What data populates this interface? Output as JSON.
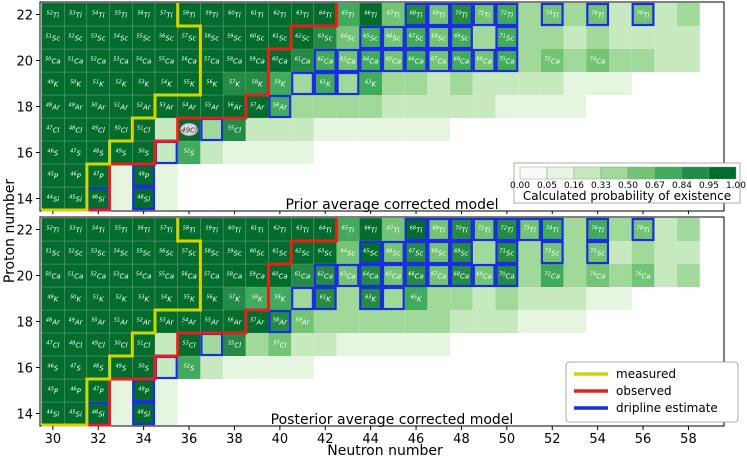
{
  "chart_data": {
    "type": "heatmap",
    "xlabel": "Neutron number",
    "ylabel": "Proton number",
    "xlim": [
      29.5,
      59.5
    ],
    "ylim": [
      13.5,
      22.5
    ],
    "xticks": [
      "30",
      "32",
      "34",
      "36",
      "38",
      "40",
      "42",
      "44",
      "46",
      "48",
      "50",
      "52",
      "54",
      "56",
      "58"
    ],
    "yticks": [
      "14",
      "16",
      "18",
      "20",
      "22"
    ],
    "elements": {
      "14": "Si",
      "15": "P",
      "16": "S",
      "17": "Cl",
      "18": "Ar",
      "19": "K",
      "20": "Ca",
      "21": "Sc",
      "22": "Ti"
    },
    "colorbar": {
      "label": "Calculated probability of existence",
      "ticks": [
        "0.00",
        "0.05",
        "0.16",
        "0.33",
        "0.50",
        "0.67",
        "0.84",
        "0.95",
        "1.00"
      ],
      "colors": [
        "#f7fcf5",
        "#e5f5e0",
        "#c7e9c0",
        "#a1d99b",
        "#74c476",
        "#41ab5d",
        "#238b45",
        "#006d2c"
      ]
    },
    "legend": [
      {
        "label": "measured",
        "color": "#d4d400"
      },
      {
        "label": "observed",
        "color": "#e8201c"
      },
      {
        "label": "dripline estimate",
        "color": "#1a2ee0"
      }
    ],
    "panels": [
      {
        "title": "Prior average corrected model",
        "circled": "49Cl",
        "rows": {
          "14": {
            "start": 30,
            "values": [
              1,
              1,
              1,
              0.05,
              1,
              0.08
            ]
          },
          "15": {
            "start": 30,
            "values": [
              1,
              1,
              1,
              0.1,
              1,
              0.05
            ]
          },
          "16": {
            "start": 30,
            "values": [
              1,
              1,
              1,
              1,
              1,
              0.2,
              0.75,
              0.25,
              0.1,
              0.05,
              0.05,
              0.05
            ]
          },
          "17": {
            "start": 30,
            "values": [
              1,
              1,
              1,
              1,
              1,
              0.3,
              1,
              0.4,
              0.9,
              0.3,
              0.2,
              0.2,
              0.15,
              0.1,
              0.1,
              0.1,
              0.08,
              0.05
            ]
          },
          "18": {
            "start": 30,
            "values": [
              1,
              1,
              1,
              1,
              1,
              1,
              1,
              1,
              1,
              1,
              0.8,
              0.4,
              0.35,
              0.35,
              0.35,
              0.3,
              0.3,
              0.3,
              0.25,
              0.2,
              0.15,
              0.12,
              0.1,
              0.08
            ]
          },
          "19": {
            "start": 30,
            "values": [
              1,
              1,
              1,
              1,
              1,
              1,
              1,
              1,
              0.9,
              0.85,
              0.75,
              0.4,
              0.8,
              0.4,
              0.8,
              0.35,
              0.4,
              0.3,
              0.35,
              0.25,
              0.3,
              0.2,
              0.2,
              0.15,
              0.12,
              0.1
            ]
          },
          "20": {
            "start": 30,
            "values": [
              1,
              1,
              1,
              1,
              1,
              1,
              1,
              1,
              1,
              1,
              0.95,
              0.85,
              0.7,
              0.5,
              0.75,
              0.5,
              0.75,
              0.5,
              0.75,
              0.5,
              0.7,
              0.45,
              0.6,
              0.4,
              0.55,
              0.35,
              0.45,
              0.3,
              0.3
            ]
          },
          "21": {
            "start": 30,
            "values": [
              1,
              1,
              1,
              1,
              1,
              1,
              1,
              1,
              1,
              1,
              1,
              1,
              0.9,
              0.6,
              0.7,
              0.5,
              0.75,
              0.5,
              0.75,
              0.45,
              0.7,
              0.4,
              0.45,
              0.3,
              0.4,
              0.25,
              0.3,
              0.2,
              0.2
            ]
          },
          "22": {
            "start": 30,
            "values": [
              1,
              1,
              1,
              1,
              1,
              1,
              1,
              1,
              1,
              1,
              1,
              1,
              1,
              0.75,
              0.95,
              0.6,
              0.9,
              0.55,
              0.85,
              0.5,
              0.8,
              0.45,
              0.65,
              0.4,
              0.55,
              0.3,
              0.5,
              0.25,
              0.35
            ]
          }
        },
        "dripline": {
          "14": [
            32,
            34
          ],
          "15": [
            34,
            34
          ],
          "16": [
            35,
            35
          ],
          "17": [
            37,
            37
          ],
          "18": [
            40,
            40
          ],
          "19": [
            41,
            43
          ],
          "20": [
            42,
            50
          ],
          "21": [
            44,
            50
          ],
          "22": [
            46,
            56
          ]
        }
      },
      {
        "title": "Posterior average corrected model",
        "circled": "",
        "rows": {
          "14": {
            "start": 30,
            "values": [
              1,
              1,
              1,
              0.05,
              1,
              0.08
            ]
          },
          "15": {
            "start": 30,
            "values": [
              1,
              1,
              1,
              0.1,
              1,
              0.05
            ]
          },
          "16": {
            "start": 30,
            "values": [
              1,
              1,
              1,
              1,
              1,
              0.2,
              0.7,
              0.2,
              0.1,
              0.05,
              0.05,
              0.05
            ]
          },
          "17": {
            "start": 30,
            "values": [
              1,
              1,
              1,
              1,
              1,
              0.3,
              1,
              0.45,
              0.9,
              0.35,
              0.5,
              0.25,
              0.2,
              0.15,
              0.12,
              0.1,
              0.08,
              0.05
            ]
          },
          "18": {
            "start": 30,
            "values": [
              1,
              1,
              1,
              1,
              1,
              1,
              1,
              1,
              1,
              1,
              0.85,
              0.5,
              0.45,
              0.45,
              0.45,
              0.4,
              0.35,
              0.35,
              0.3,
              0.25,
              0.2,
              0.15,
              0.12,
              0.1
            ]
          },
          "19": {
            "start": 30,
            "values": [
              1,
              1,
              1,
              1,
              1,
              1,
              1,
              1,
              0.85,
              0.8,
              0.7,
              0.45,
              0.85,
              0.45,
              0.85,
              0.4,
              0.8,
              0.35,
              0.4,
              0.3,
              0.35,
              0.25,
              0.25,
              0.2,
              0.15,
              0.12
            ]
          },
          "20": {
            "start": 30,
            "values": [
              1,
              1,
              1,
              1,
              1,
              1,
              1,
              1,
              1,
              1,
              0.95,
              0.85,
              0.9,
              0.5,
              0.9,
              0.5,
              0.9,
              0.5,
              0.9,
              0.5,
              0.85,
              0.45,
              0.7,
              0.4,
              0.6,
              0.35,
              0.5,
              0.3,
              0.35
            ]
          },
          "21": {
            "start": 30,
            "values": [
              1,
              1,
              1,
              1,
              1,
              1,
              1,
              1,
              1,
              1,
              1,
              1,
              1,
              0.6,
              1,
              0.5,
              0.9,
              0.5,
              0.9,
              0.45,
              0.85,
              0.4,
              0.55,
              0.35,
              0.5,
              0.3,
              0.4,
              0.25,
              0.3
            ]
          },
          "22": {
            "start": 30,
            "values": [
              1,
              1,
              1,
              1,
              1,
              1,
              1,
              1,
              1,
              1,
              1,
              1,
              1,
              0.8,
              1,
              0.65,
              0.95,
              0.6,
              0.9,
              0.55,
              0.85,
              0.5,
              0.75,
              0.45,
              0.7,
              0.4,
              0.6,
              0.3,
              0.45
            ]
          }
        },
        "dripline": {
          "14": [
            32,
            34
          ],
          "15": [
            34,
            34
          ],
          "16": [
            35,
            35
          ],
          "17": [
            37,
            37
          ],
          "18": [
            40,
            40
          ],
          "19": [
            41,
            45
          ],
          "20": [
            42,
            50
          ],
          "21": [
            44,
            54
          ],
          "22": [
            46,
            56
          ]
        }
      }
    ],
    "measured_boundary": {
      "14": 31,
      "15": 31,
      "16": 32,
      "17": 33,
      "18": 34,
      "19": 36,
      "20": 36,
      "21": 36,
      "22": 35
    },
    "observed_boundary": {
      "14": 32,
      "15": 32,
      "16": 34,
      "17": 35,
      "18": 38,
      "19": 39,
      "20": 39,
      "21": 40,
      "22": 42
    }
  }
}
